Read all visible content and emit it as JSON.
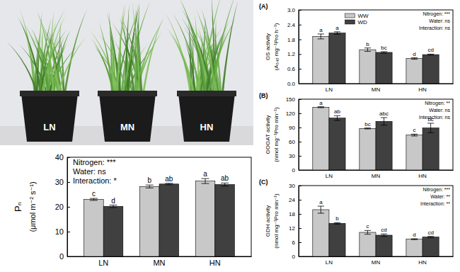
{
  "photo": {
    "labels": [
      "LN",
      "MN",
      "HN"
    ]
  },
  "chart_data": [
    {
      "type": "bar",
      "categories": [
        "LN",
        "MN",
        "HN"
      ],
      "ylabel": [
        "Pₙ",
        "(μmol m⁻² s⁻¹)"
      ],
      "ylim": [
        0,
        40
      ],
      "yticks": [
        0,
        10,
        20,
        30,
        40
      ],
      "stats": [
        "Nitrogen: ***",
        "Water: ns",
        "Interaction: *"
      ],
      "series": [
        {
          "color": "#c8c8c8",
          "values": [
            23.0,
            28.2,
            30.4
          ],
          "errors": [
            0.4,
            0.6,
            1.0
          ],
          "letters": [
            "c",
            "b",
            "a"
          ]
        },
        {
          "color": "#404040",
          "values": [
            20.2,
            29.2,
            29.0
          ],
          "errors": [
            0.5,
            0.3,
            0.6
          ],
          "letters": [
            "d",
            "ab",
            "ab"
          ]
        }
      ]
    },
    {
      "type": "bar",
      "panel_label": "(A)",
      "categories": [
        "LN",
        "MN",
        "HN"
      ],
      "ylabel": [
        "GS activity",
        "(A₅₄₀ mg⁻¹Pro h⁻¹)"
      ],
      "ylim": [
        0,
        3
      ],
      "yticks": [
        {
          "value": 0,
          "label": "0.0"
        },
        0.6,
        1.2,
        1.8,
        2.4,
        {
          "value": 3,
          "label": "3.0"
        }
      ],
      "legend": "upper center",
      "stats": [
        "Nitrogen: ***",
        "Water: ns",
        "Interaction: ns"
      ],
      "series": [
        {
          "name": "WW",
          "color": "#c8c8c8",
          "values": [
            1.92,
            1.38,
            1.02
          ],
          "errors": [
            0.1,
            0.07,
            0.03
          ],
          "letters": [
            "a",
            "b",
            "d"
          ]
        },
        {
          "name": "WD",
          "color": "#404040",
          "values": [
            2.06,
            1.27,
            1.18
          ],
          "errors": [
            0.05,
            0.03,
            0.02
          ],
          "letters": [
            "a",
            "bc",
            "cd"
          ]
        }
      ]
    },
    {
      "type": "bar",
      "panel_label": "(B)",
      "categories": [
        "LN",
        "MN",
        "HN"
      ],
      "ylabel": [
        "GOGAT activity",
        "(nmol mg⁻¹Pro min⁻¹)"
      ],
      "ylim": [
        0,
        150
      ],
      "yticks": [
        0,
        30,
        60,
        90,
        120,
        150
      ],
      "stats": [
        "Nitrogen: **",
        "Water: ns",
        "Interaction: ns"
      ],
      "series": [
        {
          "color": "#c8c8c8",
          "values": [
            133,
            88,
            74
          ],
          "errors": [
            1,
            1,
            2
          ],
          "letters": [
            "a",
            "bc",
            "c"
          ]
        },
        {
          "color": "#404040",
          "values": [
            110,
            103,
            89
          ],
          "errors": [
            5,
            8,
            10
          ],
          "letters": [
            "ab",
            "abc",
            "bc"
          ]
        }
      ]
    },
    {
      "type": "bar",
      "panel_label": "(C)",
      "categories": [
        "LN",
        "MN",
        "HN"
      ],
      "ylabel": [
        "GDH activity",
        "(nmol mg⁻¹Pro min⁻¹)"
      ],
      "ylim": [
        0,
        30
      ],
      "yticks": [
        0,
        6,
        12,
        18,
        24,
        30
      ],
      "stats": [
        "Nitrogen: ***",
        "Water: **",
        "Interaction: **"
      ],
      "series": [
        {
          "color": "#c8c8c8",
          "values": [
            19.8,
            10.2,
            7.3
          ],
          "errors": [
            1.5,
            0.8,
            0.2
          ],
          "letters": [
            "a",
            "c",
            "d"
          ]
        },
        {
          "color": "#404040",
          "values": [
            14.0,
            9.0,
            8.2
          ],
          "errors": [
            0.3,
            0.5,
            0.3
          ],
          "letters": [
            "b",
            "cd",
            "cd"
          ]
        }
      ]
    }
  ]
}
